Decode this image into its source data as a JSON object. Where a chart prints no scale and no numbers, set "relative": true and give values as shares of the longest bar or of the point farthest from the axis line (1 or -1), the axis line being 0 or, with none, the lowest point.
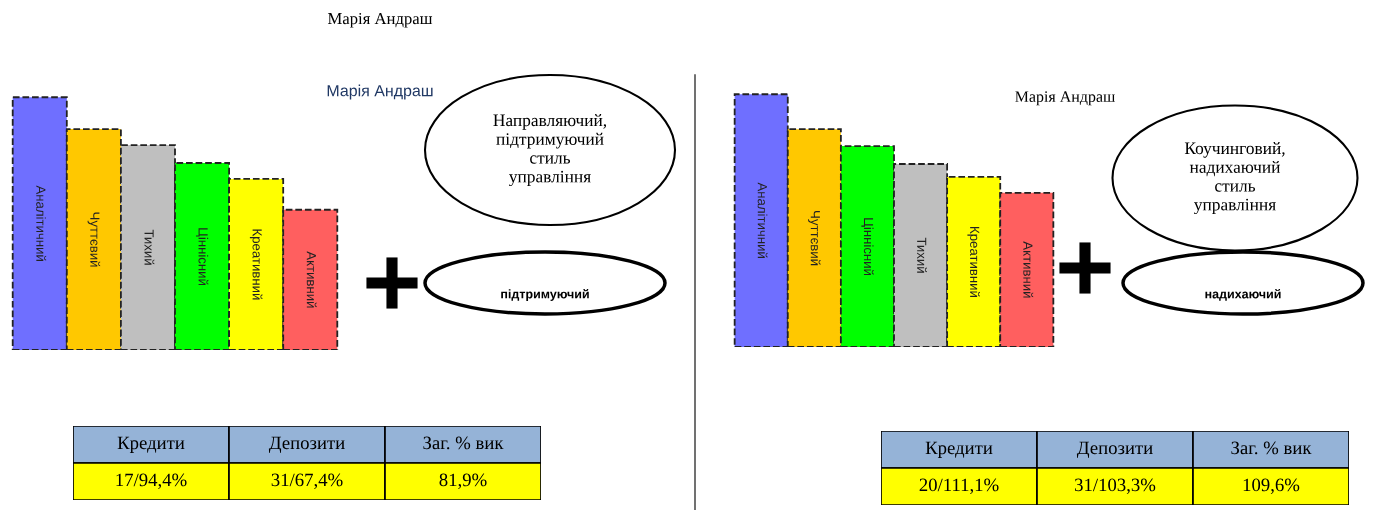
{
  "chart_data": [
    {
      "type": "bar",
      "title": "Марія Андраш",
      "subtitle": "Марія Андраш",
      "categories": [
        "Аналітичний",
        "Чуттєвий",
        "Тихий",
        "Ціннісний",
        "Креативний",
        "Активний"
      ],
      "values": [
        1,
        0.874,
        0.811,
        0.74,
        0.677,
        0.555
      ],
      "colors": [
        "#6f6fff",
        "#ffc800",
        "#bfbfbf",
        "#00ff00",
        "#ffff00",
        "#ff5f5f"
      ],
      "relative": true,
      "line_style": "dashed",
      "annotations": [
        "Направляючий,\nпідтримуючий\nстиль\nуправління",
        "підтримуючий"
      ]
    },
    {
      "type": "bar",
      "subtitle": "Марія Андраш",
      "categories": [
        "Аналітичний",
        "Чуттєвий",
        "Ціннісний",
        "Тихий",
        "Креативний",
        "Активний"
      ],
      "values": [
        1,
        0.862,
        0.795,
        0.724,
        0.673,
        0.61
      ],
      "colors": [
        "#6f6fff",
        "#ffc800",
        "#00ff00",
        "#bfbfbf",
        "#ffff00",
        "#ff5f5f"
      ],
      "relative": true,
      "line_style": "dashed",
      "annotations": [
        "Коучинговий,\nнадихаючий\nстиль\nуправління",
        "надихаючий"
      ]
    },
    {
      "type": "other",
      "categories": [
        "Кредити",
        "Депозити",
        "Заг. % вик"
      ],
      "annotations": [
        "17/94,4%",
        "31/67,4%",
        "81,9%"
      ]
    },
    {
      "type": "other",
      "categories": [
        "Кредити",
        "Депозити",
        "Заг. % вик"
      ],
      "annotations": [
        "20/111,1%",
        "31/103,3%",
        "109,6%"
      ]
    }
  ]
}
